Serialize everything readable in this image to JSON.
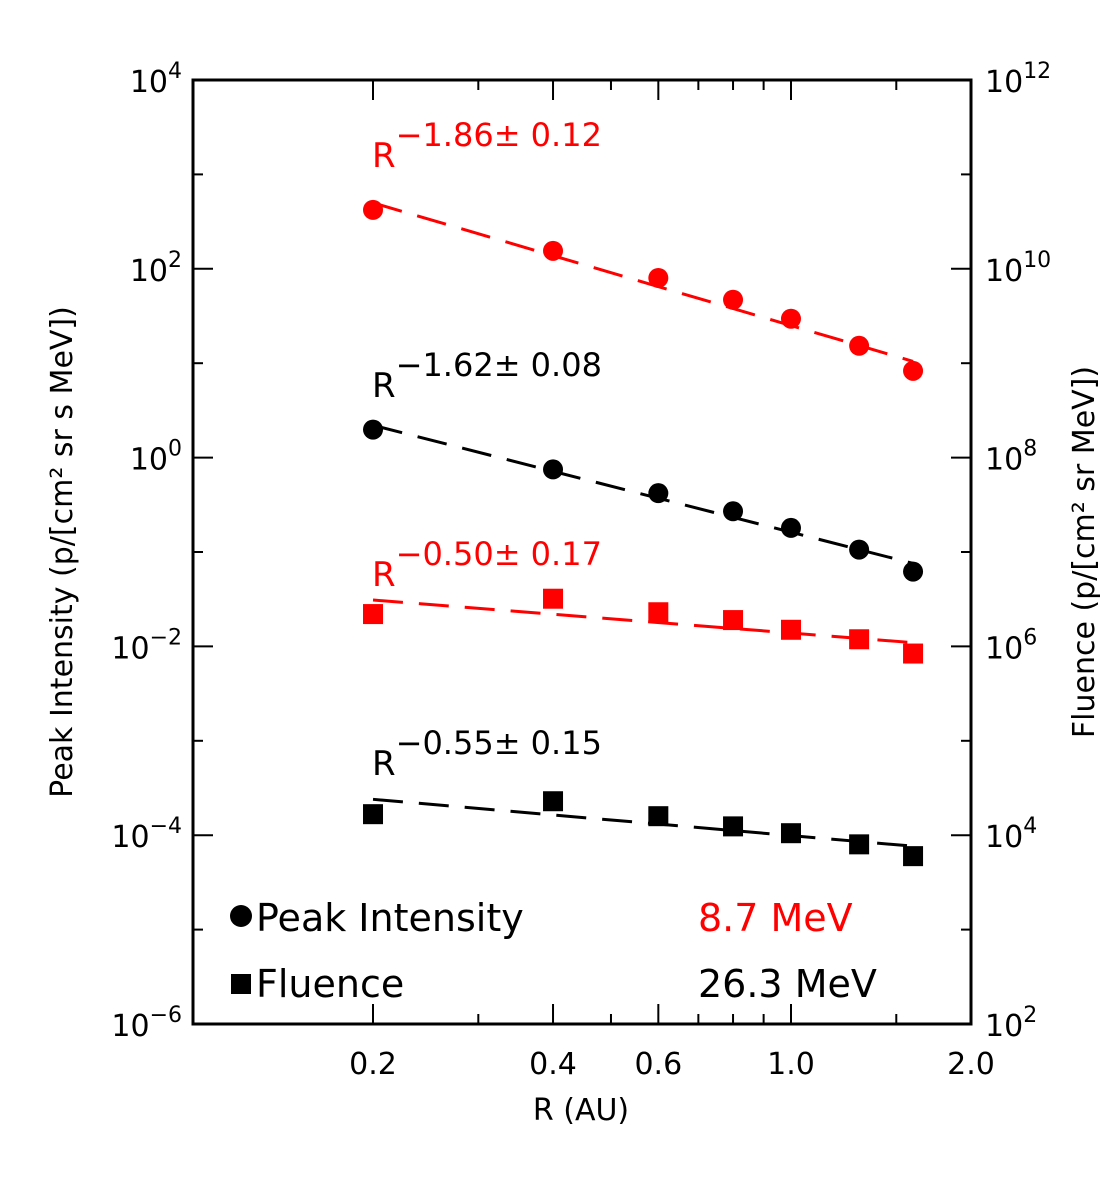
{
  "chart_data": {
    "type": "scatter",
    "xlabel": "R (AU)",
    "ylabel_left": "Peak Intensity (p/[cm² sr s MeV])",
    "ylabel_right": "Fluence (p/[cm² sr MeV])",
    "x_scale": "log",
    "xlim": [
      0.1,
      2.0
    ],
    "x_ticks": [
      0.2,
      0.4,
      0.6,
      1.0,
      2.0
    ],
    "x_tick_labels": [
      "0.2",
      "0.4",
      "0.6",
      "1.0",
      "2.0"
    ],
    "y_left_scale": "log",
    "y_left_lim": [
      1e-06,
      10000.0
    ],
    "y_left_tick_labels": [
      {
        "base": "10",
        "exp": "4"
      },
      {
        "base": "10",
        "exp": "2"
      },
      {
        "base": "10",
        "exp": "0"
      },
      {
        "base": "10",
        "exp": "−2"
      },
      {
        "base": "10",
        "exp": "−4"
      },
      {
        "base": "10",
        "exp": "−6"
      }
    ],
    "y_right_scale": "log",
    "y_right_lim": [
      100.0,
      1000000000000.0
    ],
    "y_right_tick_labels": [
      {
        "base": "10",
        "exp": "12"
      },
      {
        "base": "10",
        "exp": "10"
      },
      {
        "base": "10",
        "exp": "8"
      },
      {
        "base": "10",
        "exp": "6"
      },
      {
        "base": "10",
        "exp": "4"
      },
      {
        "base": "10",
        "exp": "2"
      }
    ],
    "x": [
      0.2,
      0.4,
      0.6,
      0.8,
      1.0,
      1.3,
      1.6
    ],
    "series": [
      {
        "quantity": "Peak Intensity",
        "energy": "8.7 MeV",
        "axis": "left",
        "marker": "circle",
        "color": "#ff0000",
        "values": [
          421,
          155,
          80,
          47,
          29.6,
          15.3,
          8.3
        ],
        "fit": {
          "index": -1.86,
          "error": 0.12,
          "value_at_0.2": 500
        }
      },
      {
        "quantity": "Peak Intensity",
        "energy": "26.3 MeV",
        "axis": "left",
        "marker": "circle",
        "color": "#000000",
        "values": [
          1.98,
          0.75,
          0.42,
          0.27,
          0.18,
          0.106,
          0.062
        ],
        "fit": {
          "index": -1.62,
          "error": 0.08,
          "value_at_0.2": 2.2
        }
      },
      {
        "quantity": "Fluence",
        "energy": "8.7 MeV",
        "axis": "right",
        "marker": "square",
        "color": "#ff0000",
        "values": [
          2200000.0,
          3200000.0,
          2300000.0,
          1900000.0,
          1500000.0,
          1190000.0,
          840000.0
        ],
        "fit": {
          "index": -0.5,
          "error": 0.17,
          "value_at_0.2": 3100000.0
        }
      },
      {
        "quantity": "Fluence",
        "energy": "26.3 MeV",
        "axis": "right",
        "marker": "square",
        "color": "#000000",
        "values": [
          16700.0,
          22900.0,
          15900.0,
          12400.0,
          10500.0,
          8000.0,
          6000.0
        ],
        "fit": {
          "index": -0.55,
          "error": 0.15,
          "value_at_0.2": 24000.0
        }
      }
    ],
    "annotations": [
      {
        "base": "R",
        "exp": "−1.86± 0.12",
        "color": "#ff0000"
      },
      {
        "base": "R",
        "exp": "−1.62± 0.08",
        "color": "#000000"
      },
      {
        "base": "R",
        "exp": "−0.50± 0.17",
        "color": "#ff0000"
      },
      {
        "base": "R",
        "exp": "−0.55± 0.15",
        "color": "#000000"
      }
    ],
    "legend": {
      "placement": "bottom-left",
      "items": [
        {
          "marker": "circle",
          "label": "Peak Intensity"
        },
        {
          "marker": "square",
          "label": "Fluence"
        }
      ],
      "energies": [
        {
          "label": "8.7 MeV",
          "color": "#ff0000"
        },
        {
          "label": "26.3 MeV",
          "color": "#000000"
        }
      ]
    }
  }
}
